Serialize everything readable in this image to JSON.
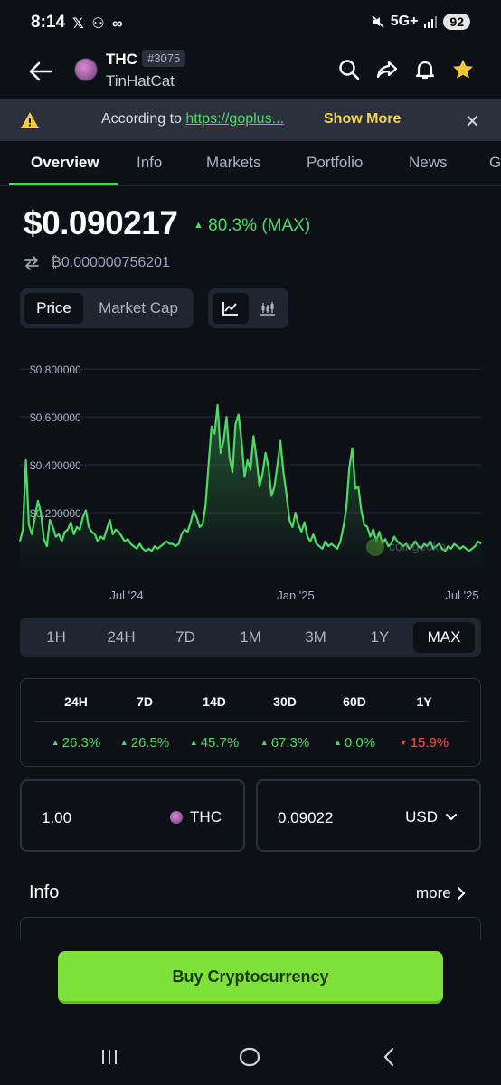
{
  "status": {
    "time": "8:14",
    "left_icons": "𝕏 ⚇ ∞",
    "network": "5G+",
    "battery": "92"
  },
  "header": {
    "symbol": "THC",
    "rank": "#3075",
    "name": "TinHatCat"
  },
  "banner": {
    "prefix": "According to ",
    "link": "https://goplus...",
    "show_more": "Show More"
  },
  "tabs": [
    "Overview",
    "Info",
    "Markets",
    "Portfolio",
    "News",
    "G"
  ],
  "price": {
    "value": "$0.090217",
    "change": "80.3% (MAX)",
    "btc": "₿0.000000756201"
  },
  "toggle": {
    "price": "Price",
    "market_cap": "Market Cap"
  },
  "chart_data": {
    "type": "area",
    "ytick_labels": [
      "$0.800000",
      "$0.600000",
      "$0.400000",
      "$0.200000"
    ],
    "yticks": [
      0.8,
      0.6,
      0.4,
      0.2
    ],
    "ylim": [
      0,
      0.85
    ],
    "xtick_labels": [
      "Jul '24",
      "Jan '25",
      "Jul '25"
    ],
    "watermark": "coingecko",
    "series": [
      {
        "values": [
          0.08,
          0.13,
          0.42,
          0.15,
          0.11,
          0.18,
          0.25,
          0.2,
          0.09,
          0.06,
          0.17,
          0.14,
          0.1,
          0.11,
          0.08,
          0.12,
          0.13,
          0.16,
          0.11,
          0.14,
          0.13,
          0.18,
          0.21,
          0.14,
          0.12,
          0.11,
          0.08,
          0.1,
          0.09,
          0.13,
          0.17,
          0.11,
          0.13,
          0.12,
          0.1,
          0.08,
          0.09,
          0.07,
          0.06,
          0.05,
          0.07,
          0.05,
          0.04,
          0.05,
          0.04,
          0.06,
          0.05,
          0.06,
          0.07,
          0.08,
          0.07,
          0.07,
          0.06,
          0.07,
          0.11,
          0.13,
          0.12,
          0.16,
          0.21,
          0.18,
          0.14,
          0.15,
          0.23,
          0.4,
          0.56,
          0.53,
          0.65,
          0.45,
          0.5,
          0.6,
          0.43,
          0.37,
          0.57,
          0.61,
          0.5,
          0.35,
          0.42,
          0.38,
          0.52,
          0.43,
          0.31,
          0.36,
          0.45,
          0.39,
          0.27,
          0.31,
          0.4,
          0.5,
          0.37,
          0.28,
          0.17,
          0.14,
          0.2,
          0.15,
          0.12,
          0.16,
          0.1,
          0.08,
          0.11,
          0.07,
          0.06,
          0.05,
          0.08,
          0.06,
          0.07,
          0.06,
          0.05,
          0.08,
          0.14,
          0.22,
          0.39,
          0.47,
          0.3,
          0.31,
          0.21,
          0.15,
          0.14,
          0.1,
          0.13,
          0.08,
          0.12,
          0.07,
          0.09,
          0.06,
          0.07,
          0.1,
          0.08,
          0.07,
          0.06,
          0.07,
          0.05,
          0.06,
          0.08,
          0.06,
          0.05,
          0.07,
          0.06,
          0.08,
          0.05,
          0.06,
          0.07,
          0.05,
          0.04,
          0.06,
          0.05,
          0.07,
          0.06,
          0.05,
          0.06,
          0.05,
          0.04,
          0.05,
          0.06,
          0.08,
          0.07
        ]
      }
    ]
  },
  "ranges": [
    "1H",
    "24H",
    "7D",
    "1M",
    "3M",
    "1Y",
    "MAX"
  ],
  "performance": {
    "headers": [
      "24H",
      "7D",
      "14D",
      "30D",
      "60D",
      "1Y"
    ],
    "values": [
      {
        "text": "26.3%",
        "dir": "up"
      },
      {
        "text": "26.5%",
        "dir": "up"
      },
      {
        "text": "45.7%",
        "dir": "up"
      },
      {
        "text": "67.3%",
        "dir": "up"
      },
      {
        "text": "0.0%",
        "dir": "up"
      },
      {
        "text": "15.9%",
        "dir": "down"
      }
    ]
  },
  "converter": {
    "amount": "1.00",
    "coin": "THC",
    "fiat_amount": "0.09022",
    "fiat": "USD"
  },
  "info": {
    "title": "Info",
    "more": "more"
  },
  "buy_label": "Buy Cryptocurrency",
  "colors": {
    "accent": "#4cd964",
    "down": "#ff4d4d",
    "buy": "#7ee03a",
    "warning": "#f7d24a",
    "bg": "#0d1117"
  }
}
